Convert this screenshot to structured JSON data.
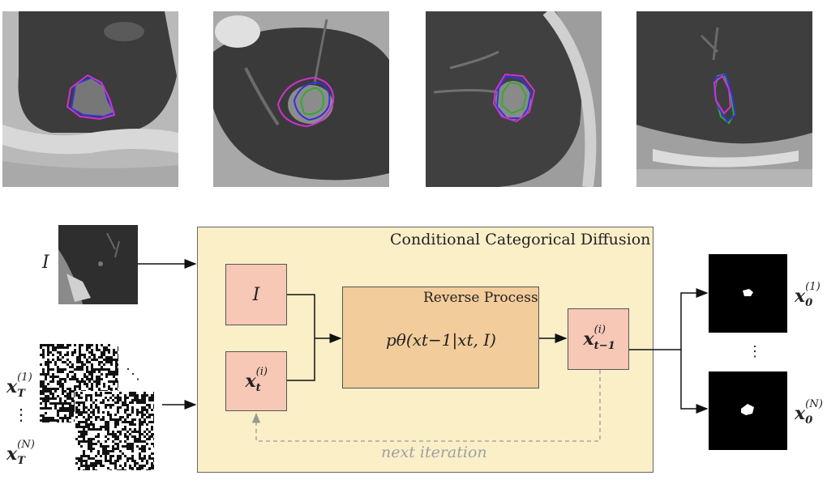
{
  "figure": {
    "thumbnails": [
      {
        "name": "ct-slice-1"
      },
      {
        "name": "ct-slice-2"
      },
      {
        "name": "ct-slice-3"
      },
      {
        "name": "ct-slice-4"
      }
    ],
    "input_image_label": "I",
    "noise": {
      "first_label_main": "x",
      "first_label_sub": "T",
      "first_label_sup": "(1)",
      "vdots": "⋮",
      "last_label_main": "x",
      "last_label_sub": "T",
      "last_label_sup": "(N)",
      "ddots": "⋱"
    },
    "panel": {
      "title": "Conditional Categorical Diffusion",
      "cond_label": "I",
      "xt_main": "x",
      "xt_sub": "t",
      "xt_sup": "(i)",
      "reverse_title": "Reverse Process",
      "reverse_formula": "pθ(xt−1|xt, I)",
      "xt1_main": "x",
      "xt1_sub": "t−1",
      "xt1_sup": "(i)",
      "loop_label": "next iteration"
    },
    "outputs": {
      "first_main": "x",
      "first_sub": "0",
      "first_sup": "(1)",
      "vdots": "⋮",
      "last_main": "x",
      "last_sub": "0",
      "last_sup": "(N)"
    },
    "colors": {
      "panel_bg": "#fbefc8",
      "box_salmon": "#f6c8b5",
      "reverse_box": "#f2cc9a",
      "contour_magenta": "#cc33cc",
      "contour_blue": "#3333dd",
      "contour_green": "#33aa33",
      "loop_arrow": "#999999"
    }
  }
}
